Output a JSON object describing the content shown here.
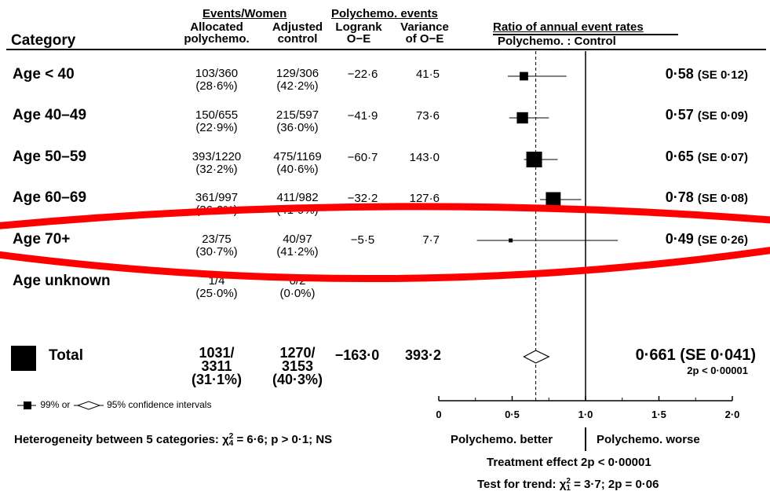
{
  "header": {
    "category": "Category",
    "events_group": "Events/Women",
    "allocated_1": "Allocated",
    "allocated_2": "polychemo.",
    "adjusted_1": "Adjusted",
    "adjusted_2": "control",
    "poly_group": "Polychemo. events",
    "logrank_1": "Logrank",
    "logrank_2": "O−E",
    "variance_1": "Variance",
    "variance_2": "of O−E",
    "ratio_title": "Ratio of annual event rates",
    "ratio_sub": "Polychemo. : Control"
  },
  "rows": [
    {
      "label": "Age < 40",
      "alloc": "103/360",
      "alloc_pct": "(28·6%)",
      "ctrl": "129/306",
      "ctrl_pct": "(42·2%)",
      "oe": "−22·6",
      "var": "41·5",
      "ratio": "0·58",
      "se_text": "(SE 0·12)"
    },
    {
      "label": "Age 40–49",
      "alloc": "150/655",
      "alloc_pct": "(22·9%)",
      "ctrl": "215/597",
      "ctrl_pct": "(36·0%)",
      "oe": "−41·9",
      "var": "73·6",
      "ratio": "0·57",
      "se_text": "(SE 0·09)"
    },
    {
      "label": "Age 50–59",
      "alloc": "393/1220",
      "alloc_pct": "(32·2%)",
      "ctrl": "475/1169",
      "ctrl_pct": "(40·6%)",
      "oe": "−60·7",
      "var": "143·0",
      "ratio": "0·65",
      "se_text": "(SE 0·07)"
    },
    {
      "label": "Age 60–69",
      "alloc": "361/997",
      "alloc_pct": "(36·2%)",
      "ctrl": "411/982",
      "ctrl_pct": "(41·9%)",
      "oe": "−32·2",
      "var": "127·6",
      "ratio": "0·78",
      "se_text": "(SE 0·08)"
    },
    {
      "label": "Age 70+",
      "alloc": "23/75",
      "alloc_pct": "(30·7%)",
      "ctrl": "40/97",
      "ctrl_pct": "(41·2%)",
      "oe": "−5·5",
      "var": "7·7",
      "ratio": "0·49",
      "se_text": "(SE 0·26)"
    },
    {
      "label": "Age unknown",
      "alloc": "1/4",
      "alloc_pct": "(25·0%)",
      "ctrl": "0/2",
      "ctrl_pct": "(0·0%)",
      "oe": "",
      "var": "",
      "ratio": "",
      "se_text": ""
    }
  ],
  "total": {
    "label": "Total",
    "alloc_1": "1031/",
    "alloc_2": "3311",
    "alloc_pct": "(31·1%)",
    "ctrl_1": "1270/",
    "ctrl_2": "3153",
    "ctrl_pct": "(40·3%)",
    "oe": "−163·0",
    "var": "393·2",
    "ratio": "0·661",
    "se_text": "(SE 0·041)",
    "p": "2p < 0·00001"
  },
  "legend": {
    "square_text": "99% or",
    "diamond_text": "95% confidence intervals"
  },
  "heterogeneity": {
    "prefix": "Heterogeneity between 5 categories: χ",
    "sub": "4",
    "sup": "2",
    "suffix": " = 6·6; p > 0·1; NS"
  },
  "axis_labels": {
    "better": "Polychemo. better",
    "worse": "Polychemo. worse"
  },
  "treatment_effect": "Treatment effect 2p < 0·00001",
  "trend": {
    "prefix": "Test for trend: χ",
    "sub": "1",
    "sup": "2",
    "suffix": " = 3·7; 2p = 0·06"
  },
  "colors": {
    "highlight": "#ff0000",
    "ink": "#000000"
  },
  "chart_data": {
    "type": "forest",
    "title": "Ratio of annual event rates",
    "subtitle": "Polychemo. : Control",
    "xlim": [
      0,
      2
    ],
    "ticks": [
      0,
      0.5,
      1.0,
      1.5,
      2.0
    ],
    "tick_labels": [
      "0",
      "0·5",
      "1·0",
      "1·5",
      "2·0"
    ],
    "reference_line": 1.0,
    "overall_dashed_line": 0.661,
    "categories": [
      "Age < 40",
      "Age 40–49",
      "Age 50–59",
      "Age 60–69",
      "Age 70+",
      "Age unknown"
    ],
    "ratios": [
      0.58,
      0.57,
      0.65,
      0.78,
      0.49,
      null
    ],
    "se": [
      0.12,
      0.09,
      0.07,
      0.08,
      0.26,
      null
    ],
    "ci99_low": [
      0.47,
      0.48,
      0.58,
      0.69,
      0.26,
      null
    ],
    "ci99_high": [
      0.87,
      0.75,
      0.81,
      0.97,
      1.22,
      null
    ],
    "variance": [
      41.5,
      73.6,
      143.0,
      127.6,
      7.7,
      null
    ],
    "total": {
      "ratio": 0.661,
      "se": 0.041,
      "ci95_low": 0.58,
      "ci95_high": 0.75
    },
    "highlighted_category": "Age 70+"
  }
}
